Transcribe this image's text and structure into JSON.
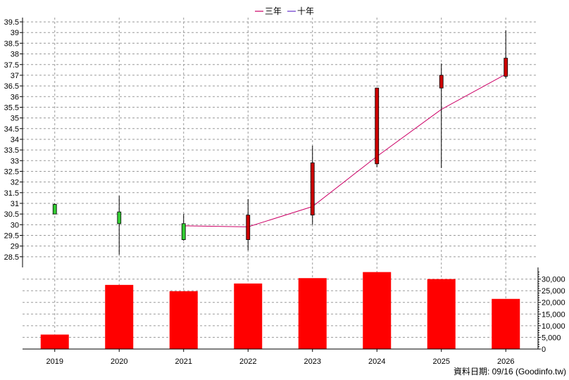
{
  "legend": {
    "items": [
      {
        "label": "三年",
        "color": "#cc0066"
      },
      {
        "label": "十年",
        "color": "#6633cc"
      }
    ]
  },
  "source_note": "資料日期: 09/16 (Goodinfo.tw)",
  "chart_data": [
    {
      "type": "candlestick",
      "categories": [
        "2019",
        "2020",
        "2021",
        "2022",
        "2023",
        "2024",
        "2025",
        "2026"
      ],
      "ohlc": [
        {
          "open": 30.5,
          "high": 31.0,
          "low": 30.5,
          "close": 30.95
        },
        {
          "open": 30.05,
          "high": 31.35,
          "low": 28.6,
          "close": 30.6
        },
        {
          "open": 29.3,
          "high": 30.5,
          "low": 29.25,
          "close": 30.05
        },
        {
          "open": 30.45,
          "high": 31.2,
          "low": 28.8,
          "close": 29.3
        },
        {
          "open": 32.9,
          "high": 33.7,
          "low": 30.0,
          "close": 30.45
        },
        {
          "open": 36.4,
          "high": 36.4,
          "low": 32.7,
          "close": 32.85
        },
        {
          "open": 37.0,
          "high": 37.55,
          "low": 32.65,
          "close": 36.4
        },
        {
          "open": 37.8,
          "high": 39.1,
          "low": 36.85,
          "close": 36.95
        }
      ],
      "up_color": "#33cc33",
      "down_color": "#cc0000",
      "lines": [
        {
          "name": "三年",
          "color": "#cc0066",
          "values": [
            null,
            null,
            29.95,
            29.9,
            30.85,
            33.2,
            35.4,
            37.05
          ]
        }
      ],
      "y_ticks": [
        28.5,
        29,
        29.5,
        30,
        30.5,
        31,
        31.5,
        32,
        32.5,
        33,
        33.5,
        34,
        34.5,
        35,
        35.5,
        36,
        36.5,
        37,
        37.5,
        38,
        38.5,
        39,
        39.5
      ],
      "y_tick_labels": [
        "28.5",
        "29",
        "29.5",
        "30",
        "30.5",
        "31",
        "31.5",
        "32",
        "32.5",
        "33",
        "33.5",
        "34",
        "34.5",
        "35",
        "35.5",
        "36",
        "36.5",
        "37",
        "37.5",
        "38",
        "38.5",
        "39",
        "39.5"
      ],
      "ylim": [
        28.0,
        39.7
      ],
      "grid": true
    },
    {
      "type": "bar",
      "categories": [
        "2019",
        "2020",
        "2021",
        "2022",
        "2023",
        "2024",
        "2025",
        "2026"
      ],
      "values": [
        6200,
        27500,
        24800,
        28100,
        30400,
        33000,
        30000,
        21500
      ],
      "color": "#ff0000",
      "y_ticks": [
        0,
        5000,
        10000,
        15000,
        20000,
        25000,
        30000
      ],
      "y_tick_labels": [
        "0",
        "5,000",
        "10,000",
        "15,000",
        "20,000",
        "25,000",
        "30,000"
      ],
      "ylim": [
        0,
        35000
      ],
      "grid": true
    }
  ]
}
